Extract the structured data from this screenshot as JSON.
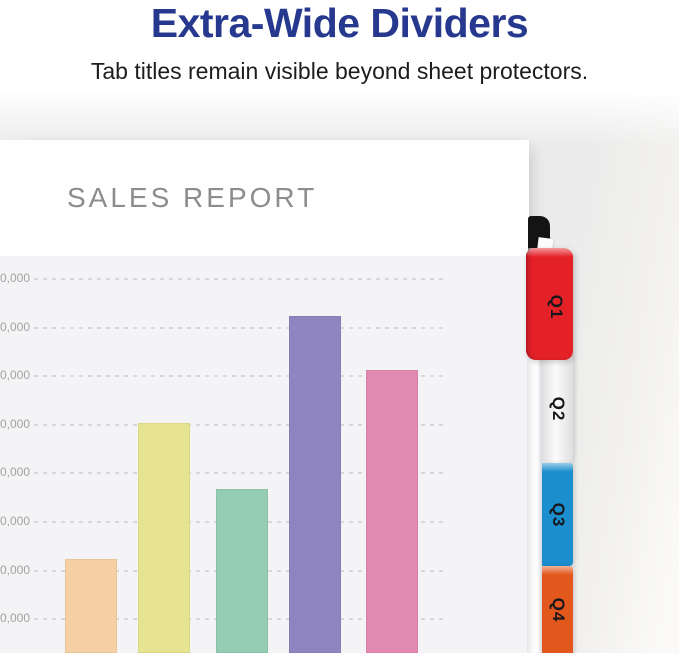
{
  "header": {
    "title": "Extra-Wide Dividers",
    "subtitle": "Tab titles remain visible beyond sheet protectors.",
    "title_color": "#27388f",
    "subtitle_color": "#1d1d1f"
  },
  "sheet": {
    "title": "SALES REPORT",
    "title_color": "#8d8d8d",
    "paper_color": "#fefefe",
    "chart_background_color": "#f4f4f6"
  },
  "chart_data": {
    "type": "bar",
    "title": "SALES REPORT",
    "categories": [
      "",
      "",
      "",
      "",
      ""
    ],
    "values": [
      22000,
      50000,
      36500,
      72000,
      61000
    ],
    "bar_colors": [
      "#f6cfa4",
      "#e7e491",
      "#95cdb3",
      "#8e84bf",
      "#e289b2"
    ],
    "ytick_label_visible": "0,000",
    "gridline_count": 8,
    "gridline_step_value": 10000,
    "grid_style": "dashed",
    "gridline_color": "#d8d8d8",
    "xlabel": "",
    "ylabel": "",
    "legend": "none"
  },
  "tabs": [
    {
      "label": "Q1",
      "color": "#e52128"
    },
    {
      "label": "Q2",
      "color": "#ececee"
    },
    {
      "label": "Q3",
      "color": "#1b8ecd"
    },
    {
      "label": "Q4",
      "color": "#e2571b"
    }
  ]
}
